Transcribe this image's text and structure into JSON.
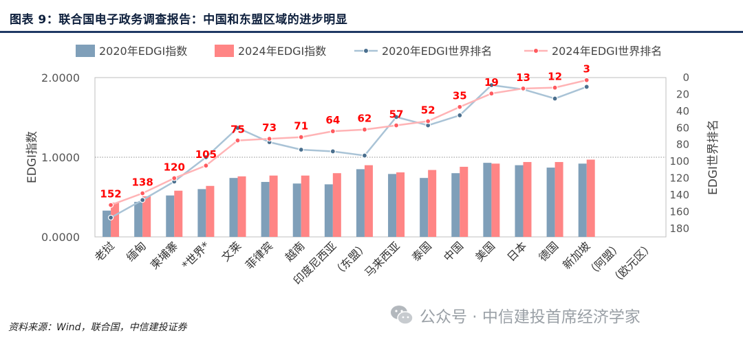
{
  "header": {
    "title": "图表 9：联合国电子政务调查报告：中国和东盟区域的进步明显"
  },
  "source": "资料来源：Wind，联合国，中信建投证券",
  "watermark": {
    "text": "公众号 · 中信建投首席经济学家",
    "icon": "wechat-icon"
  },
  "colors": {
    "bar2020": "#7f9fb9",
    "bar2024": "#ff8585",
    "line2020": "#a9c3d6",
    "line2024": "#ffb3b5",
    "marker2020": "#4a6f8e",
    "marker2024": "#ff5a5f",
    "rankLabel": "#ff0000",
    "title": "#0d1f3c",
    "rule": "#1f3864"
  },
  "chart_data": {
    "type": "bar",
    "categories": [
      "老挝",
      "缅甸",
      "柬埔寨",
      "*世界*",
      "文莱",
      "菲律宾",
      "越南",
      "印度尼西亚",
      "（东盟）",
      "马来西亚",
      "泰国",
      "中国",
      "美国",
      "日本",
      "德国",
      "新加坡",
      "（阿盟）",
      "（欧元区）"
    ],
    "ylabel": "EDGI指数",
    "y2label": "EDGI世界排名",
    "ylim": [
      0,
      2
    ],
    "y_ticks": [
      "0.0000",
      "1.0000",
      "2.0000"
    ],
    "y2lim": [
      0,
      190
    ],
    "y2_reversed": true,
    "y2_ticks": [
      "0",
      "20",
      "40",
      "60",
      "80",
      "100",
      "120",
      "140",
      "160",
      "180"
    ],
    "legend_position": "top",
    "grid": false,
    "reference_line": 1.0,
    "series": [
      {
        "name": "2020年EDGI指数",
        "type": "bar",
        "values": [
          0.33,
          0.44,
          0.52,
          0.6,
          0.74,
          0.69,
          0.67,
          0.66,
          0.85,
          0.79,
          0.74,
          0.8,
          0.93,
          0.9,
          0.87,
          0.92,
          null,
          null
        ]
      },
      {
        "name": "2024年EDGI指数",
        "type": "bar",
        "values": [
          0.43,
          0.51,
          0.58,
          0.64,
          0.76,
          0.77,
          0.77,
          0.8,
          0.9,
          0.81,
          0.84,
          0.88,
          0.92,
          0.94,
          0.94,
          0.97,
          null,
          null
        ]
      },
      {
        "name": "2020年EDGI世界排名",
        "type": "line",
        "values": [
          167,
          146,
          124,
          95,
          60,
          77,
          86,
          88,
          93,
          47,
          57,
          45,
          9,
          14,
          25,
          11,
          null,
          null
        ]
      },
      {
        "name": "2024年EDGI世界排名",
        "type": "line",
        "values": [
          152,
          138,
          120,
          105,
          75,
          73,
          71,
          64,
          62,
          57,
          52,
          35,
          19,
          13,
          12,
          3,
          null,
          null
        ],
        "labels": [
          "152",
          "138",
          "120",
          "105",
          "75",
          "73",
          "71",
          "64",
          "62",
          "57",
          "52",
          "35",
          "19",
          "13",
          "12",
          "3",
          "",
          ""
        ]
      }
    ]
  }
}
